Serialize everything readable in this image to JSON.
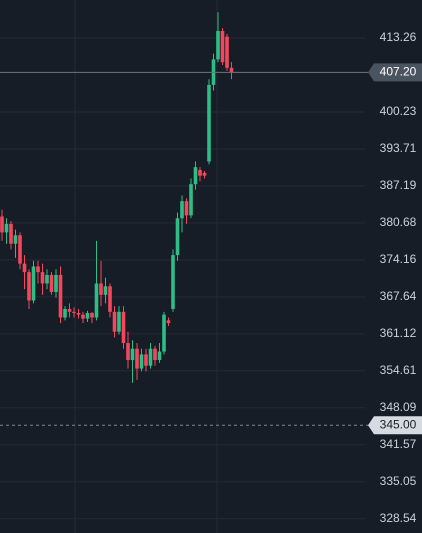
{
  "chart_data": {
    "type": "candlestick",
    "open": [
      381.8,
      379.0,
      380.5,
      377.0,
      378.5,
      373.5,
      372.0,
      367.0,
      373.0,
      372.0,
      370.0,
      371.5,
      368.5,
      371.5,
      364.0,
      365.5,
      365.0,
      364.8,
      364.5,
      363.8,
      364.8,
      364.0,
      370.0,
      368.0,
      369.5,
      365.0,
      361.5,
      365.0,
      359.5,
      356.5,
      358.5,
      355.0,
      357.5,
      355.5,
      358.5,
      356.5,
      358.0,
      363.5,
      365.5,
      375.0,
      381.5,
      384.5,
      382.0,
      387.5,
      390.0,
      389.5,
      391.5,
      405.0,
      409.5,
      414.5,
      413.5,
      408.0
    ],
    "high": [
      383.0,
      381.5,
      381.0,
      379.5,
      379.0,
      375.0,
      372.5,
      374.0,
      374.0,
      373.5,
      372.5,
      372.0,
      372.5,
      373.0,
      366.0,
      366.5,
      365.8,
      365.5,
      365.0,
      365.2,
      365.0,
      377.5,
      374.0,
      371.0,
      370.0,
      366.0,
      366.0,
      366.0,
      361.5,
      360.0,
      359.5,
      358.5,
      358.5,
      359.5,
      359.0,
      359.5,
      365.0,
      364.0,
      376.0,
      382.5,
      385.5,
      385.0,
      388.5,
      391.5,
      390.5,
      389.8,
      406.0,
      410.5,
      417.8,
      415.0,
      414.0,
      409.0
    ],
    "low": [
      377.5,
      377.0,
      376.0,
      374.5,
      372.5,
      369.0,
      365.5,
      366.5,
      370.0,
      368.0,
      369.0,
      368.0,
      367.5,
      363.0,
      363.5,
      364.0,
      364.0,
      363.8,
      363.0,
      363.2,
      363.0,
      363.5,
      366.0,
      366.5,
      364.0,
      360.5,
      361.0,
      358.5,
      355.0,
      352.5,
      353.0,
      354.5,
      354.5,
      355.0,
      355.5,
      356.0,
      357.5,
      362.5,
      365.0,
      374.0,
      379.0,
      380.5,
      381.5,
      386.5,
      388.0,
      388.5,
      391.0,
      404.0,
      409.0,
      408.5,
      407.5,
      406.0
    ],
    "close": [
      379.0,
      380.5,
      377.0,
      378.5,
      373.5,
      372.0,
      367.0,
      373.0,
      372.0,
      370.0,
      371.5,
      368.5,
      371.5,
      364.0,
      365.5,
      365.0,
      364.8,
      364.5,
      363.8,
      364.8,
      364.0,
      370.0,
      368.0,
      369.5,
      365.0,
      361.5,
      365.0,
      359.5,
      356.5,
      358.5,
      355.0,
      357.5,
      355.5,
      358.5,
      356.5,
      358.0,
      364.5,
      363.0,
      375.0,
      381.5,
      384.5,
      382.0,
      387.5,
      390.5,
      389.0,
      389.0,
      405.0,
      409.5,
      414.5,
      409.0,
      408.0,
      407.2
    ],
    "up_color": "#2ebd85",
    "down_color": "#f6465d",
    "ylim": [
      326.02,
      419.96
    ],
    "yticks": [
      413.26,
      400.23,
      393.71,
      387.19,
      380.68,
      374.16,
      367.64,
      361.12,
      354.61,
      348.09,
      341.57,
      335.05,
      328.54
    ],
    "price_lines": [
      {
        "value": 407.2,
        "label": "407.20",
        "style": "solid"
      },
      {
        "value": 345,
        "label": "345.00",
        "style": "dashed"
      }
    ],
    "grid": true
  }
}
